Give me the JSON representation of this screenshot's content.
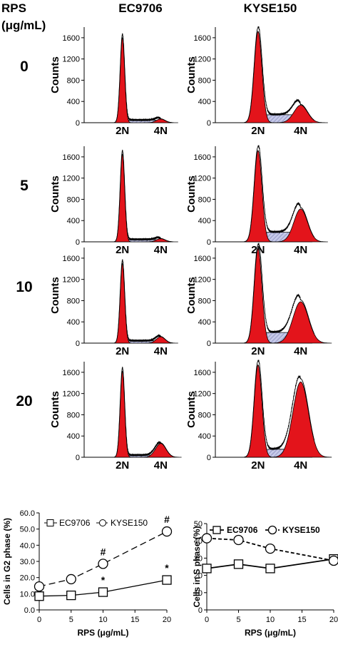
{
  "header": {
    "rps_line1": "RPS",
    "rps_line2": "(μg/mL)",
    "col1": "EC9706",
    "col2": "KYSE150"
  },
  "histograms": {
    "doses": [
      "0",
      "5",
      "10",
      "20"
    ],
    "y_ticks": [
      "0",
      "400",
      "800",
      "1200",
      "1600"
    ],
    "ylabel": "Counts",
    "label_2n": "2N",
    "label_4n": "4N",
    "colors": {
      "g1_g2": "#e3141b",
      "s_phase": "#c5c8e8",
      "outline": "#000000"
    }
  },
  "chart_data": [
    {
      "type": "line",
      "xlabel": "RPS (μg/mL)",
      "ylabel": "Cells in G2 phase (%)",
      "x": [
        0,
        5,
        10,
        20
      ],
      "xlim": [
        0,
        20
      ],
      "ylim": [
        0,
        60
      ],
      "x_ticks": [
        "0",
        "5",
        "10",
        "15",
        "20"
      ],
      "y_ticks": [
        "0.0",
        "10.0",
        "20.0",
        "30.0",
        "40.0",
        "50.0",
        "60.0"
      ],
      "legend_position": "top",
      "series": [
        {
          "name": "EC9706",
          "marker": "square",
          "line": "solid",
          "values": [
            8.5,
            9.0,
            11.0,
            18.5
          ]
        },
        {
          "name": "KYSE150",
          "marker": "circle",
          "line": "dashed",
          "values": [
            14.5,
            19.0,
            28.5,
            48.5
          ]
        }
      ],
      "annotations": [
        {
          "x": 10,
          "series": "KYSE150",
          "text": "#"
        },
        {
          "x": 20,
          "series": "KYSE150",
          "text": "#"
        },
        {
          "x": 10,
          "series": "EC9706",
          "text": "*"
        },
        {
          "x": 20,
          "series": "EC9706",
          "text": "*"
        }
      ]
    },
    {
      "type": "line",
      "xlabel": "RPS (μg/mL)",
      "ylabel": "Cells in S phase (%)",
      "x": [
        0,
        5,
        10,
        20
      ],
      "xlim": [
        0,
        20
      ],
      "ylim": [
        0,
        50
      ],
      "x_ticks": [
        "0",
        "5",
        "10",
        "15",
        "20"
      ],
      "y_ticks": [
        "0",
        "10",
        "20",
        "30",
        "40",
        "50"
      ],
      "legend_position": "top",
      "series": [
        {
          "name": "EC9706",
          "marker": "square",
          "line": "solid",
          "values": [
            24,
            26.5,
            24,
            29.5
          ]
        },
        {
          "name": "KYSE150",
          "marker": "circle",
          "line": "dashed",
          "values": [
            41.5,
            40.5,
            35.5,
            28.5
          ]
        }
      ]
    }
  ]
}
